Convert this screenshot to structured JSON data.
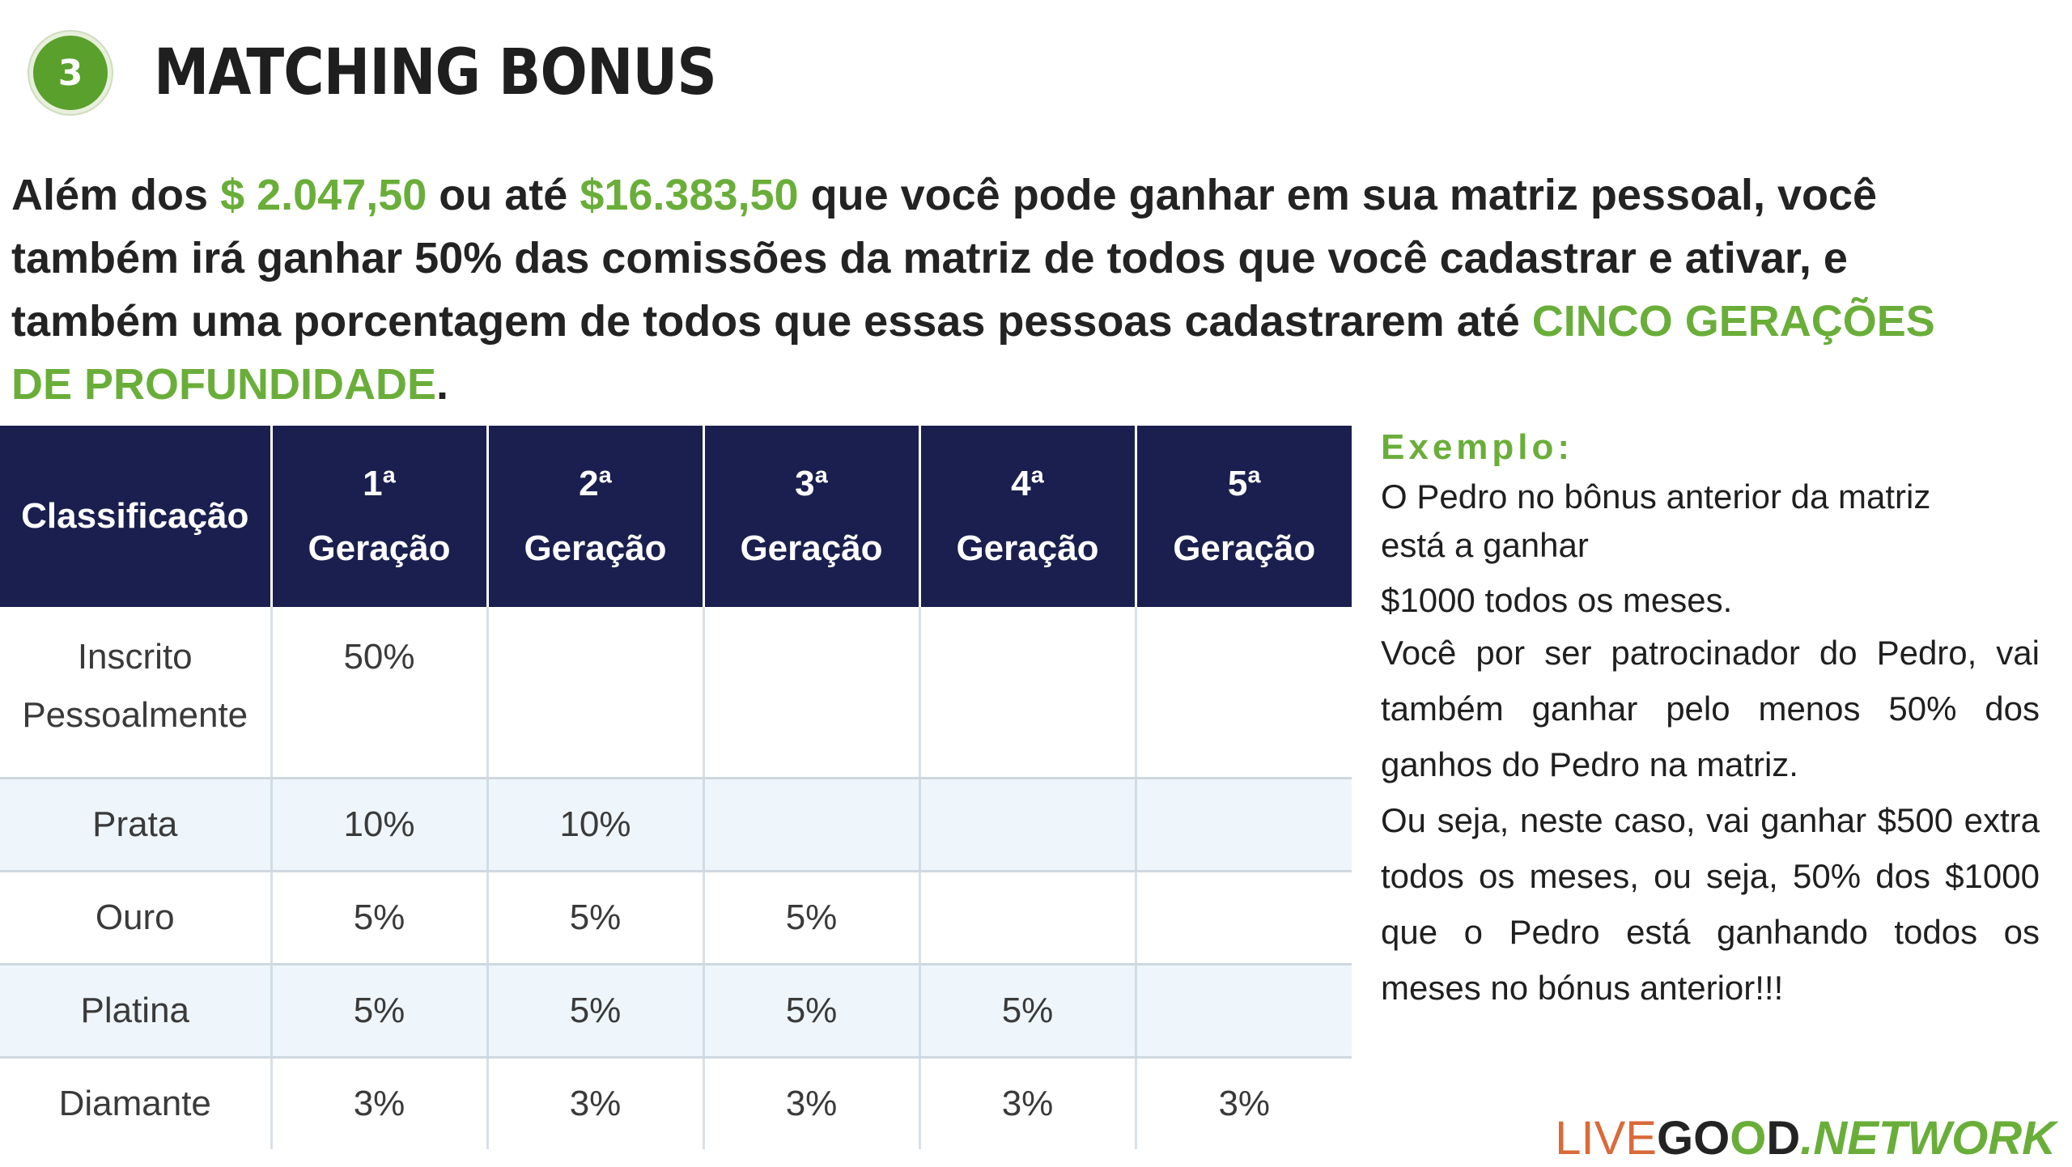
{
  "header": {
    "badge": "3",
    "title": "MATCHING BONUS"
  },
  "intro": {
    "p1": "Além dos ",
    "amount1": "$ 2.047,50",
    "p2": " ou até ",
    "amount2": "$16.383,50",
    "p3": " que você pode ganhar em sua matriz pessoal, você também irá ganhar 50% das comissões da matriz de todos que você cadastrar e ativar, e também uma porcentagem de todos que essas pessoas cadastrarem até ",
    "highlight": "CINCO GERAÇÕES DE PROFUNDIDADE",
    "p4": "."
  },
  "table": {
    "header_first": "Classificação",
    "columns": [
      {
        "num": "1ª",
        "label": "Geração"
      },
      {
        "num": "2ª",
        "label": "Geração"
      },
      {
        "num": "3ª",
        "label": "Geração"
      },
      {
        "num": "4ª",
        "label": "Geração"
      },
      {
        "num": "5ª",
        "label": "Geração"
      }
    ],
    "rows": [
      {
        "name_line1": "Inscrito",
        "name_line2": "Pessoalmente",
        "values": [
          "50%",
          "",
          "",
          "",
          ""
        ]
      },
      {
        "name": "Prata",
        "values": [
          "10%",
          "10%",
          "",
          "",
          ""
        ]
      },
      {
        "name": "Ouro",
        "values": [
          "5%",
          "5%",
          "5%",
          "",
          ""
        ]
      },
      {
        "name": "Platina",
        "values": [
          "5%",
          "5%",
          "5%",
          "5%",
          ""
        ]
      },
      {
        "name": "Diamante",
        "values": [
          "3%",
          "3%",
          "3%",
          "3%",
          "3%"
        ]
      }
    ]
  },
  "example": {
    "title": "Exemplo:",
    "line1": "O Pedro no bônus anterior da matriz",
    "line2": "está a ganhar",
    "line3": "$1000 todos os meses.",
    "para2": "Você por ser patrocinador do Pedro, vai também ganhar pelo menos 50% dos ganhos do Pedro na matriz.",
    "para3": "Ou seja, neste caso, vai ganhar $500 extra todos os meses, ou seja, 50% dos $1000 que o Pedro está ganhando todos os meses no bónus anterior!!!"
  },
  "logo": {
    "live": "LIVE",
    "g": "G",
    "o1": "O",
    "o2": "O",
    "d": "D",
    "network": ".NETWORK"
  }
}
